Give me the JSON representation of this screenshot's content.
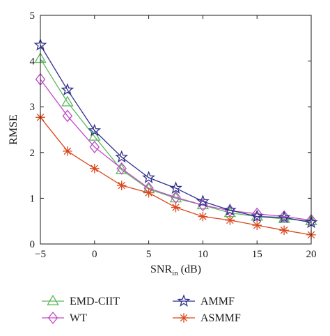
{
  "chart_data": {
    "type": "line",
    "xlabel": "SNR",
    "xlabel_sub": "in",
    "xlabel_unit": " (dB)",
    "ylabel": "RMSE",
    "xlim": [
      -5,
      20
    ],
    "ylim": [
      0,
      5
    ],
    "xticks": [
      -5,
      0,
      5,
      10,
      15,
      20
    ],
    "yticks": [
      0,
      1,
      2,
      3,
      4,
      5
    ],
    "grid": false,
    "legend_placement": "below",
    "x": [
      -5,
      -2.5,
      0,
      2.5,
      5,
      7.5,
      10,
      12.5,
      15,
      17.5,
      20
    ],
    "series": [
      {
        "name": "EMD-CIIT",
        "marker": "triangle",
        "color": "#5cb85c",
        "values": [
          4.05,
          3.1,
          2.35,
          1.62,
          1.2,
          1.0,
          0.85,
          0.68,
          0.6,
          0.55,
          0.5
        ]
      },
      {
        "name": "WT",
        "marker": "diamond",
        "color": "#c04ac8",
        "values": [
          3.6,
          2.8,
          2.12,
          1.65,
          1.22,
          1.02,
          0.85,
          0.73,
          0.66,
          0.6,
          0.52
        ]
      },
      {
        "name": "AMMF",
        "marker": "star",
        "color": "#2e2e8c",
        "values": [
          4.35,
          3.37,
          2.48,
          1.9,
          1.45,
          1.22,
          0.93,
          0.74,
          0.6,
          0.58,
          0.47
        ]
      },
      {
        "name": "ASMMF",
        "marker": "asterisk",
        "color": "#d9481c",
        "values": [
          2.77,
          2.03,
          1.65,
          1.28,
          1.12,
          0.8,
          0.6,
          0.52,
          0.41,
          0.3,
          0.2
        ]
      }
    ]
  }
}
